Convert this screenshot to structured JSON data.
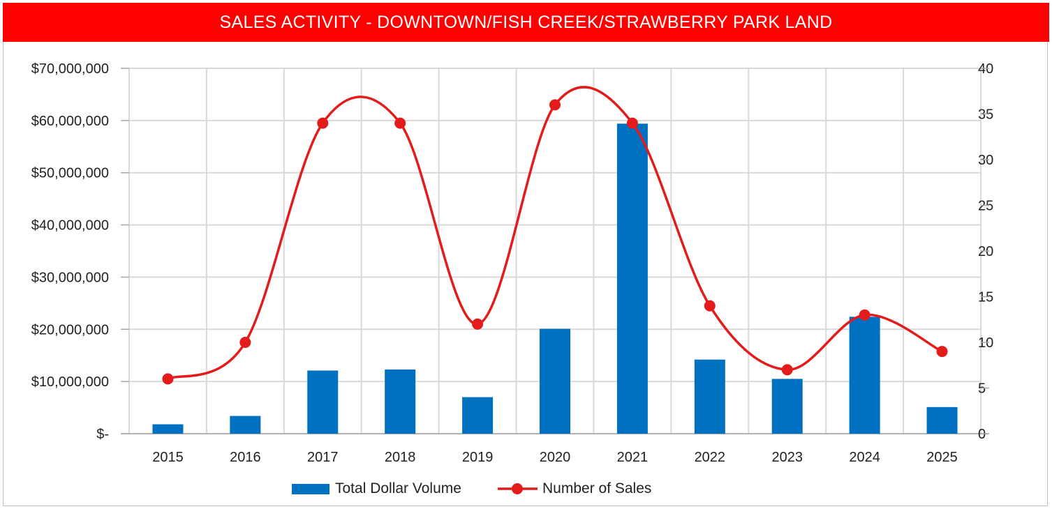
{
  "title": "SALES ACTIVITY - DOWNTOWN/FISH CREEK/STRAWBERRY PARK LAND",
  "colors": {
    "title_bg": "#ff0000",
    "bar": "#0070c0",
    "line": "#e31b1b",
    "grid": "#d9d9d9"
  },
  "chart_data": {
    "type": "bar+line",
    "title": "SALES ACTIVITY - DOWNTOWN/FISH CREEK/STRAWBERRY PARK LAND",
    "categories": [
      "2015",
      "2016",
      "2017",
      "2018",
      "2019",
      "2020",
      "2021",
      "2022",
      "2023",
      "2024",
      "2025"
    ],
    "series": [
      {
        "name": "Total Dollar Volume",
        "type": "bar",
        "axis": "left",
        "values": [
          1800000,
          3400000,
          12100000,
          12300000,
          7000000,
          20100000,
          59400000,
          14200000,
          10500000,
          22400000,
          5100000
        ]
      },
      {
        "name": "Number of Sales",
        "type": "line",
        "axis": "right",
        "smooth": true,
        "values": [
          6,
          10,
          34,
          34,
          12,
          36,
          34,
          14,
          7,
          13,
          9
        ]
      }
    ],
    "left_axis": {
      "min": 0,
      "max": 70000000,
      "tick_labels": [
        "$-",
        "$10,000,000",
        "$20,000,000",
        "$30,000,000",
        "$40,000,000",
        "$50,000,000",
        "$60,000,000",
        "$70,000,000"
      ]
    },
    "right_axis": {
      "min": 0,
      "max": 40,
      "tick_labels": [
        "0",
        "5",
        "10",
        "15",
        "20",
        "25",
        "30",
        "35",
        "40"
      ]
    },
    "legend": {
      "placement": "bottom",
      "entries": [
        "Total Dollar Volume",
        "Number of Sales"
      ]
    },
    "grid": true
  }
}
